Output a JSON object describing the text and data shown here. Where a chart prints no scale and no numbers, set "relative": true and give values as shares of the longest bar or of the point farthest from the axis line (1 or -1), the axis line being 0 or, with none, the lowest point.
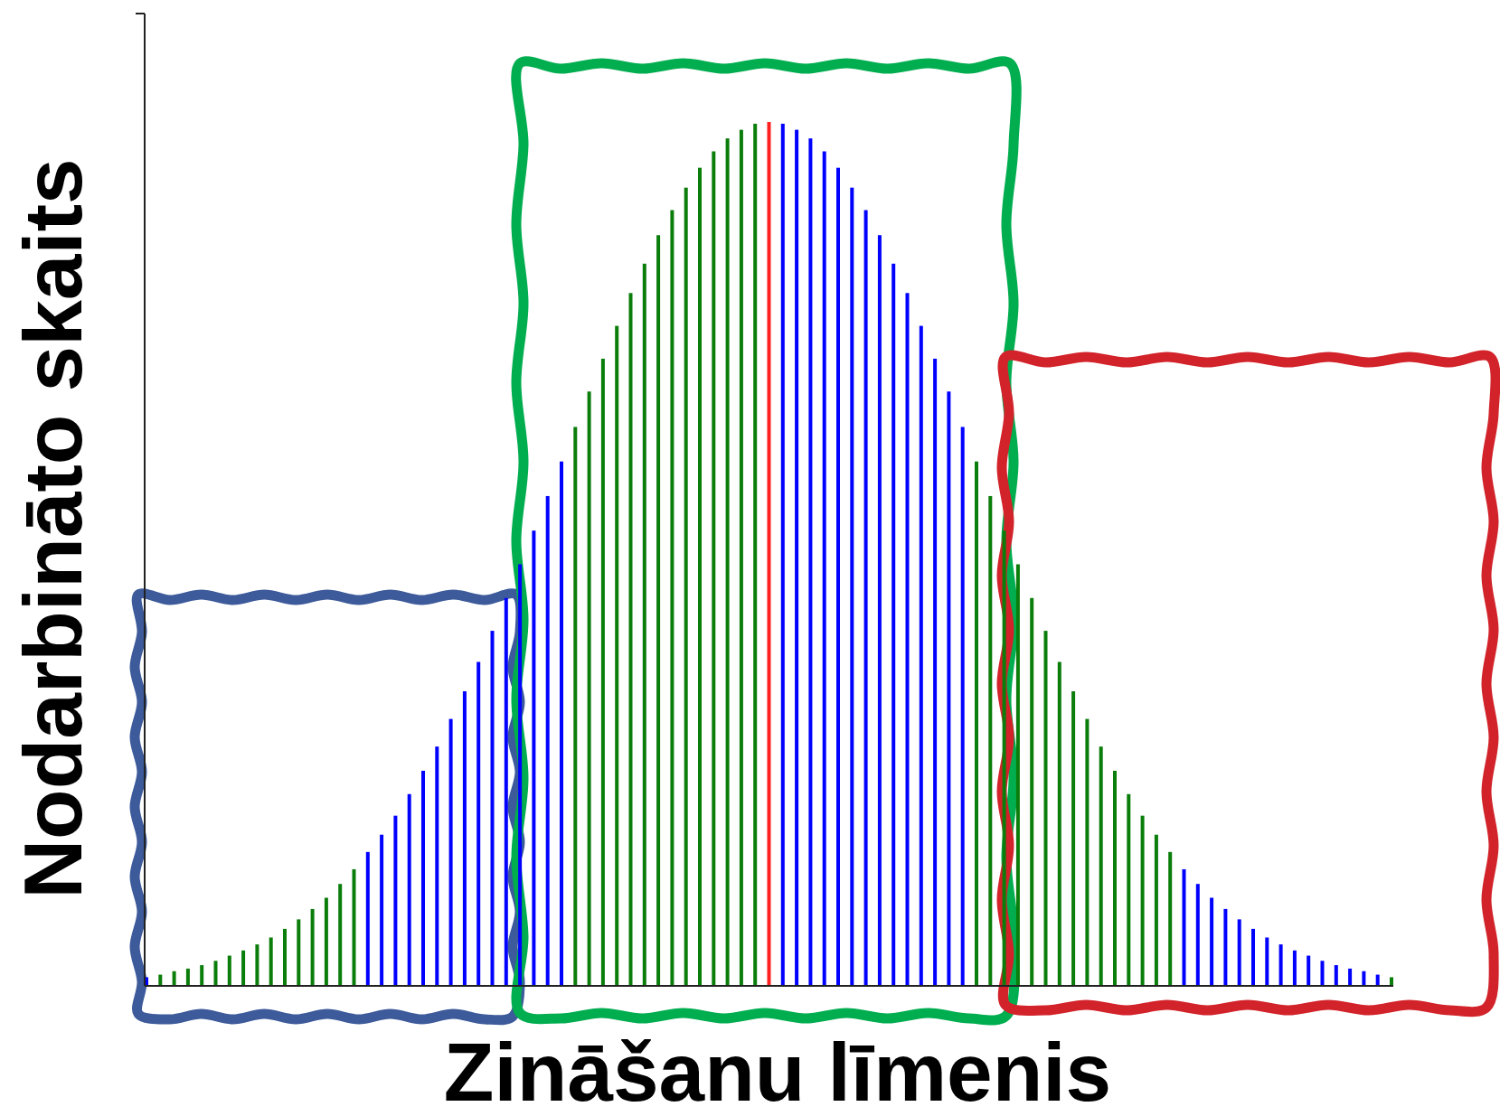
{
  "chart_data": {
    "type": "bar",
    "relative": true,
    "xlabel": "Zināšanu līmenis",
    "ylabel": "Nodarbināto skaits",
    "categories": [
      null,
      null,
      null,
      null,
      null,
      null,
      null,
      null,
      null,
      null,
      null,
      null,
      null,
      null,
      null,
      null,
      null,
      null,
      null,
      null,
      null,
      null,
      null,
      null,
      null,
      null,
      null,
      null,
      null,
      null,
      null,
      null,
      null,
      null,
      null,
      null,
      null,
      null,
      null,
      null,
      null,
      null,
      null,
      null,
      null,
      null,
      null,
      null,
      null,
      null,
      null,
      null,
      null,
      null,
      null,
      null,
      null,
      null,
      null,
      null,
      null,
      null,
      null,
      null,
      null,
      null,
      null,
      null,
      null,
      null,
      null,
      null,
      null,
      null,
      null,
      null,
      null,
      null,
      null,
      null,
      null,
      null,
      null,
      null,
      null,
      null,
      null,
      null,
      null,
      null,
      null
    ],
    "values": [
      0.01,
      0.013,
      0.017,
      0.02,
      0.024,
      0.029,
      0.035,
      0.041,
      0.048,
      0.056,
      0.066,
      0.077,
      0.089,
      0.102,
      0.118,
      0.135,
      0.155,
      0.175,
      0.197,
      0.222,
      0.249,
      0.277,
      0.309,
      0.341,
      0.375,
      0.411,
      0.449,
      0.488,
      0.527,
      0.567,
      0.607,
      0.647,
      0.688,
      0.726,
      0.764,
      0.802,
      0.836,
      0.869,
      0.898,
      0.924,
      0.947,
      0.966,
      0.981,
      0.991,
      0.998,
      1,
      0.998,
      0.991,
      0.981,
      0.966,
      0.947,
      0.924,
      0.898,
      0.869,
      0.836,
      0.802,
      0.764,
      0.726,
      0.688,
      0.647,
      0.607,
      0.567,
      0.527,
      0.488,
      0.449,
      0.411,
      0.375,
      0.341,
      0.309,
      0.277,
      0.249,
      0.222,
      0.197,
      0.175,
      0.155,
      0.135,
      0.118,
      0.102,
      0.089,
      0.077,
      0.066,
      0.056,
      0.048,
      0.041,
      0.035,
      0.029,
      0.024,
      0.02,
      0.017,
      0.013,
      0.01
    ],
    "colors": [
      "#0000ff",
      "#0a7d0a",
      "#0a7d0a",
      "#0a7d0a",
      "#0a7d0a",
      "#0a7d0a",
      "#0a7d0a",
      "#0a7d0a",
      "#0a7d0a",
      "#0a7d0a",
      "#0a7d0a",
      "#0a7d0a",
      "#0a7d0a",
      "#0a7d0a",
      "#0a7d0a",
      "#0a7d0a",
      "#0000ff",
      "#0000ff",
      "#0000ff",
      "#0000ff",
      "#0000ff",
      "#0000ff",
      "#0000ff",
      "#0000ff",
      "#0000ff",
      "#0000ff",
      "#0000ff",
      "#0000ff",
      "#0000ff",
      "#0000ff",
      "#0000ff",
      "#0a7d0a",
      "#0a7d0a",
      "#0a7d0a",
      "#0a7d0a",
      "#0a7d0a",
      "#0a7d0a",
      "#0a7d0a",
      "#0a7d0a",
      "#0a7d0a",
      "#0a7d0a",
      "#0a7d0a",
      "#0a7d0a",
      "#0a7d0a",
      "#0a7d0a",
      "#ff2020",
      "#0000ff",
      "#0000ff",
      "#0000ff",
      "#0000ff",
      "#0000ff",
      "#0000ff",
      "#0000ff",
      "#0000ff",
      "#0000ff",
      "#0000ff",
      "#0000ff",
      "#0000ff",
      "#0000ff",
      "#0000ff",
      "#0a7d0a",
      "#0a7d0a",
      "#0a7d0a",
      "#0a7d0a",
      "#0a7d0a",
      "#0a7d0a",
      "#0a7d0a",
      "#0a7d0a",
      "#0a7d0a",
      "#0a7d0a",
      "#0a7d0a",
      "#0a7d0a",
      "#0a7d0a",
      "#0a7d0a",
      "#0a7d0a",
      "#0000ff",
      "#0000ff",
      "#0000ff",
      "#0000ff",
      "#0000ff",
      "#0000ff",
      "#0000ff",
      "#0000ff",
      "#0000ff",
      "#0000ff",
      "#0000ff",
      "#0000ff",
      "#0000ff",
      "#0000ff",
      "#0000ff",
      "#0a7d0a"
    ]
  }
}
